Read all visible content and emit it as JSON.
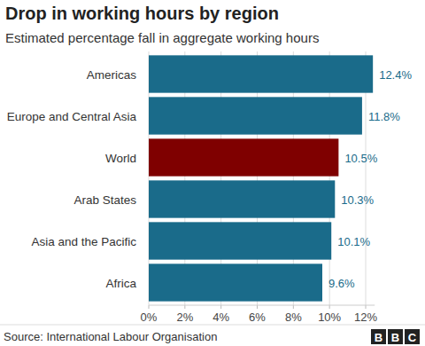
{
  "chart_data": {
    "type": "bar",
    "orientation": "horizontal",
    "title": "Drop in working hours by region",
    "subtitle": "Estimated percentage fall in aggregate working hours",
    "categories": [
      "Americas",
      "Europe and Central Asia",
      "World",
      "Arab States",
      "Asia and the Pacific",
      "Africa"
    ],
    "values": [
      12.4,
      11.8,
      10.5,
      10.3,
      10.1,
      9.6
    ],
    "value_labels": [
      "12.4%",
      "11.8%",
      "10.5%",
      "10.3%",
      "10.1%",
      "9.6%"
    ],
    "colors": [
      "#1a6b8a",
      "#1a6b8a",
      "#7f0000",
      "#1a6b8a",
      "#1a6b8a",
      "#1a6b8a"
    ],
    "xlim": [
      0,
      12.5
    ],
    "xticks": [
      {
        "value": 0,
        "label": "0%"
      },
      {
        "value": 2,
        "label": "2%"
      },
      {
        "value": 4,
        "label": "4%"
      },
      {
        "value": 6,
        "label": "6%"
      },
      {
        "value": 8,
        "label": "8%"
      },
      {
        "value": 10,
        "label": "10%"
      },
      {
        "value": 12,
        "label": "12%"
      }
    ],
    "grid": true,
    "data_labels": true,
    "source": "Source: International Labour Organisation",
    "logo": "BBC"
  }
}
